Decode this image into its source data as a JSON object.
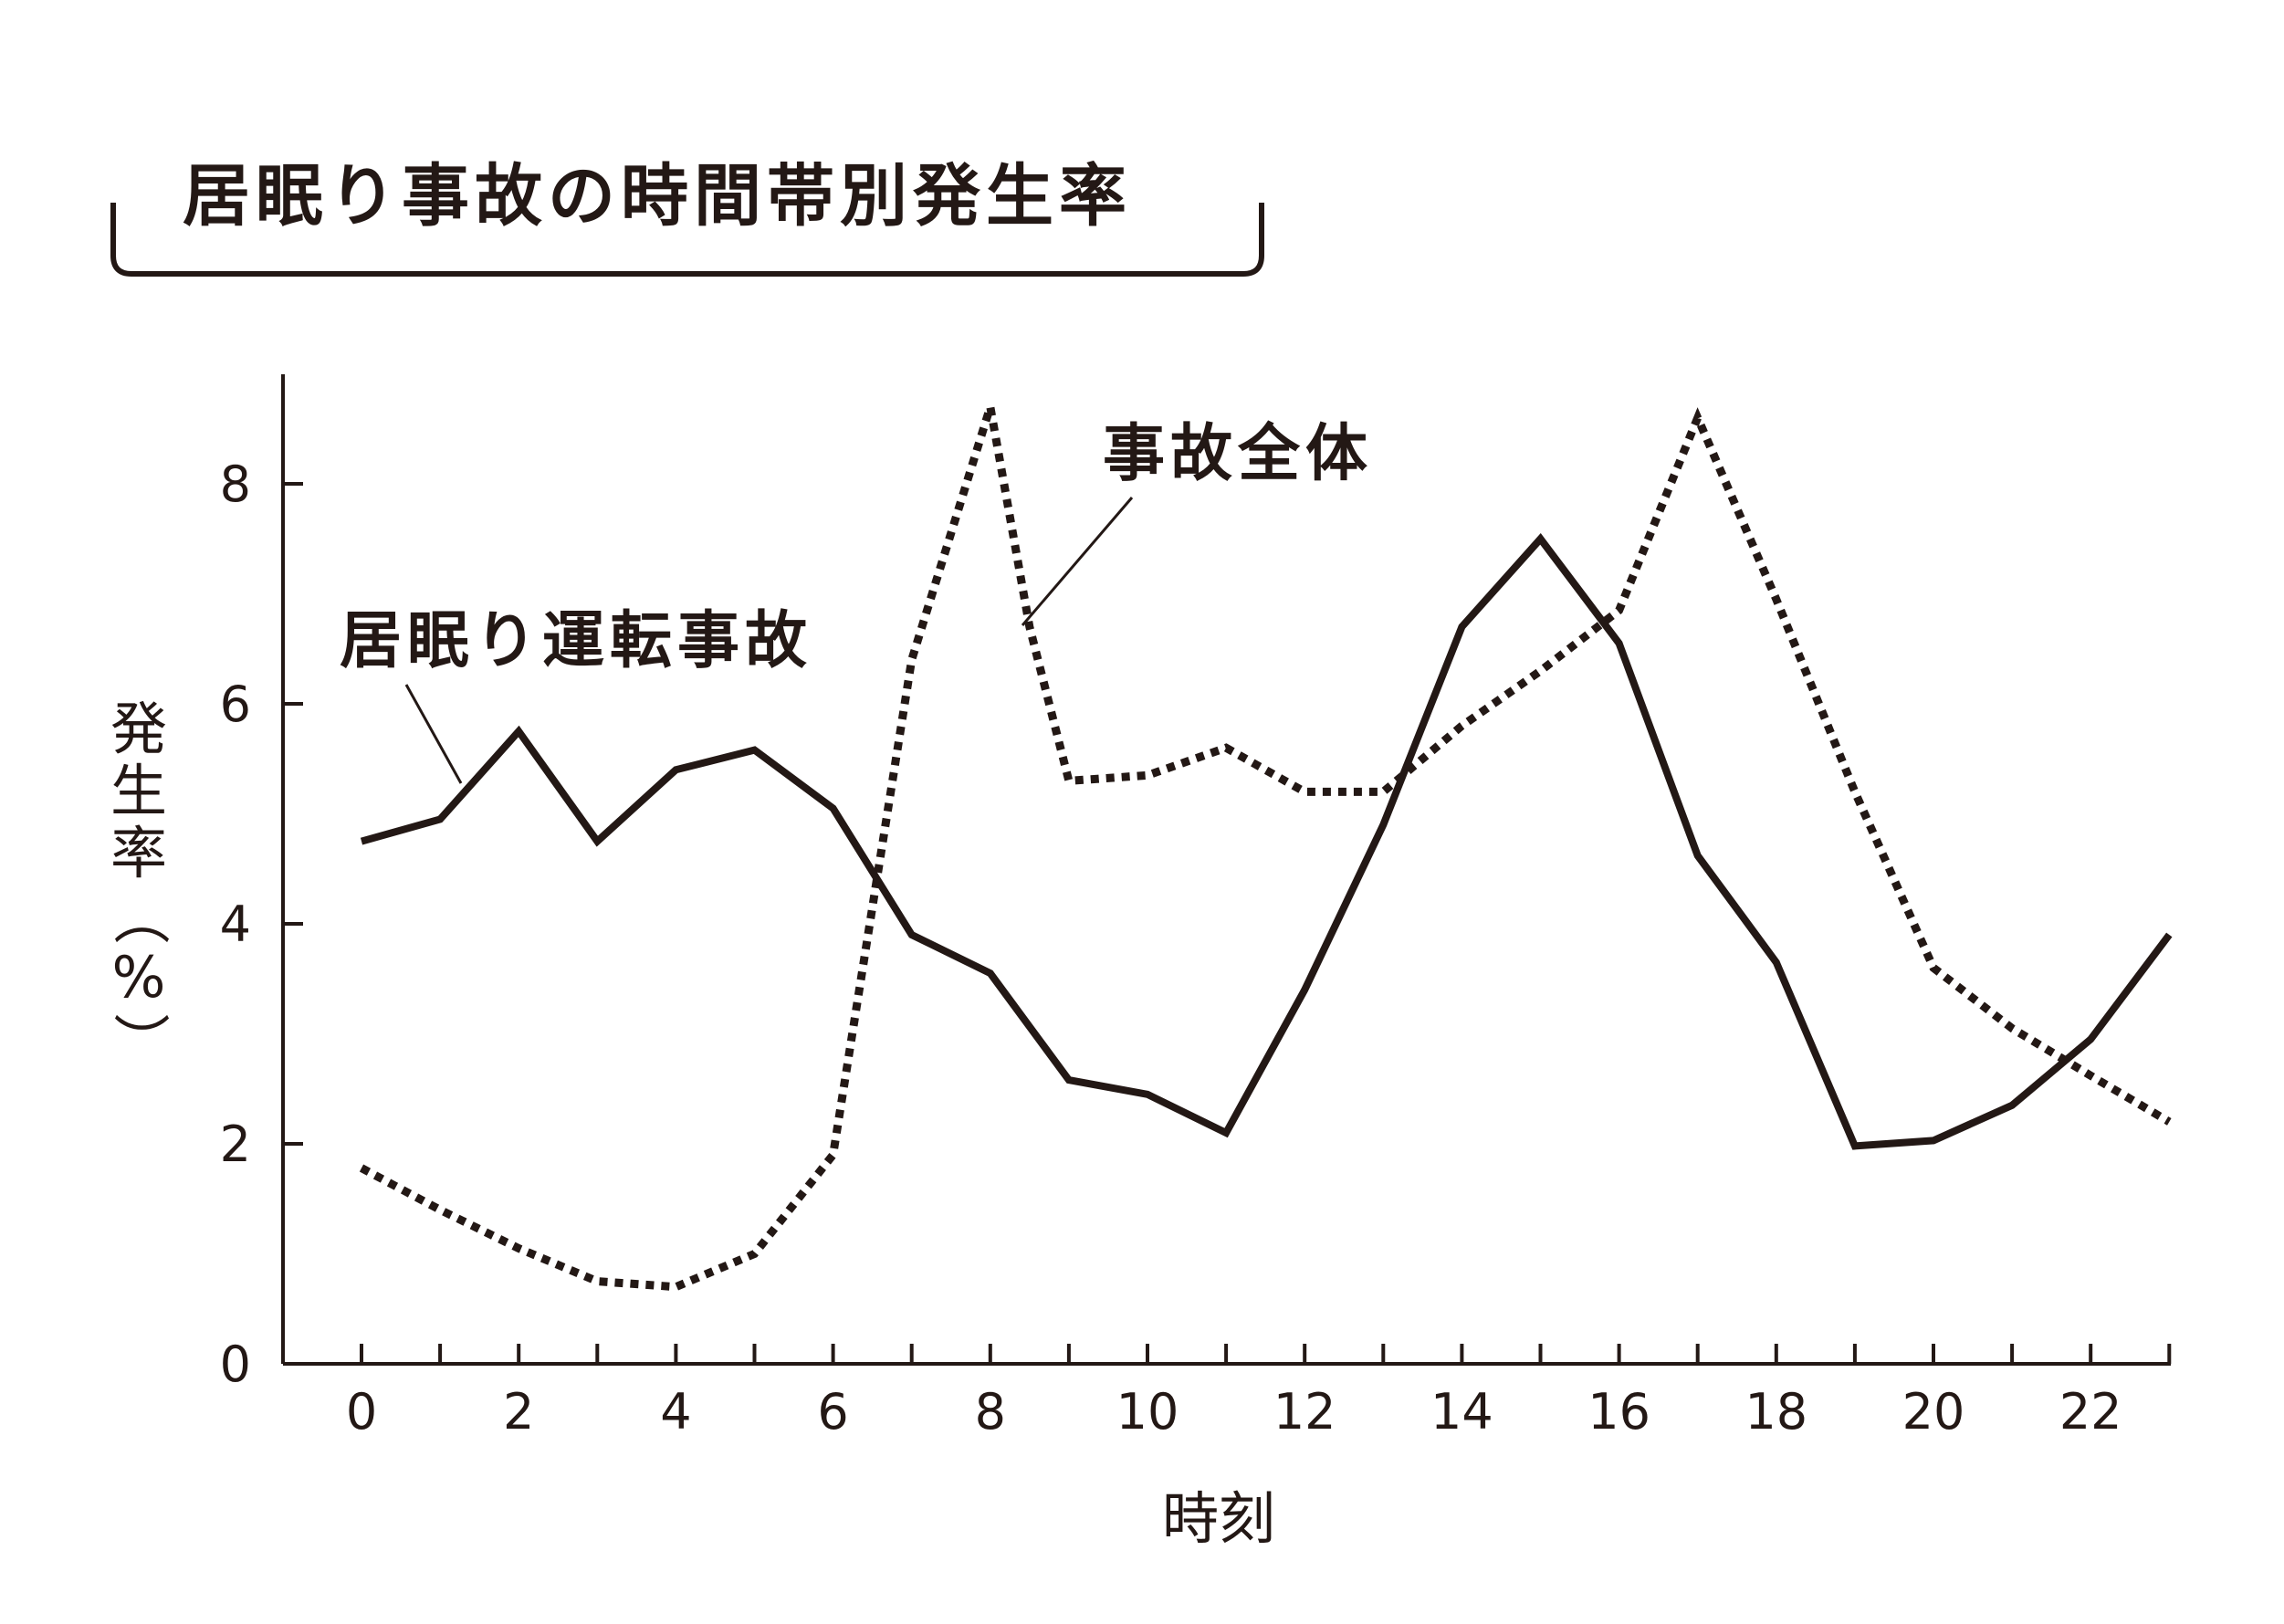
{
  "chart_data": {
    "type": "line",
    "title": "居眠り事故の時間帯別発生率",
    "xlabel": "時刻",
    "ylabel": "発生率（%）",
    "ylabel_chars": [
      "発",
      "生",
      "率",
      "（",
      "%",
      "）"
    ],
    "x": [
      0,
      1,
      2,
      3,
      4,
      5,
      6,
      7,
      8,
      9,
      10,
      11,
      12,
      13,
      14,
      15,
      16,
      17,
      18,
      19,
      20,
      21,
      22,
      23
    ],
    "xticks": [
      0,
      1,
      2,
      3,
      4,
      5,
      6,
      7,
      8,
      9,
      10,
      11,
      12,
      13,
      14,
      15,
      16,
      17,
      18,
      19,
      20,
      21,
      22,
      23
    ],
    "xtick_labels": [
      "0",
      "2",
      "4",
      "6",
      "8",
      "10",
      "12",
      "14",
      "16",
      "18",
      "20",
      "22"
    ],
    "xtick_label_values": [
      0,
      2,
      4,
      6,
      8,
      10,
      12,
      14,
      16,
      18,
      20,
      22
    ],
    "yticks": [
      0,
      2,
      4,
      6,
      8
    ],
    "ytick_labels": [
      "0",
      "2",
      "4",
      "6",
      "8"
    ],
    "xlim": [
      -1,
      23
    ],
    "ylim": [
      0,
      9
    ],
    "grid": false,
    "legend": "inline annotations",
    "series": [
      {
        "name": "居眠り運転事故",
        "style": "solid",
        "color": "#231815",
        "values": [
          4.75,
          4.95,
          5.75,
          4.75,
          5.4,
          5.58,
          5.05,
          3.9,
          3.55,
          2.58,
          2.45,
          2.1,
          3.4,
          4.9,
          6.7,
          7.5,
          6.55,
          4.62,
          3.65,
          1.98,
          2.03,
          2.35,
          2.95,
          3.9
        ]
      },
      {
        "name": "事故全体",
        "style": "dotted",
        "color": "#231815",
        "x": [
          0,
          1,
          2,
          3,
          4,
          5,
          6,
          7,
          8,
          8.5,
          9,
          10,
          11,
          12,
          13,
          14,
          15,
          16,
          17,
          18,
          19,
          20,
          21,
          22,
          23
        ],
        "values": [
          1.78,
          1.4,
          1.05,
          0.75,
          0.7,
          1.0,
          1.9,
          6.4,
          8.7,
          6.7,
          5.3,
          5.35,
          5.6,
          5.2,
          5.2,
          5.8,
          6.3,
          6.85,
          8.6,
          6.95,
          5.2,
          3.6,
          3.05,
          2.62,
          2.2
        ]
      }
    ],
    "annotations": [
      {
        "text": "居眠り運転事故",
        "series": 0
      },
      {
        "text": "事故全体",
        "series": 1
      }
    ]
  }
}
